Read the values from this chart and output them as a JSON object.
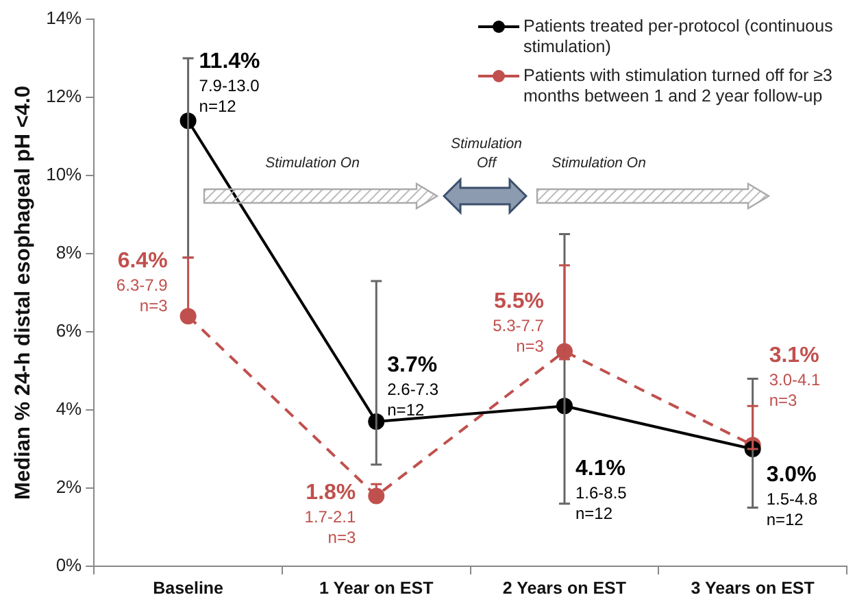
{
  "chart_data": {
    "type": "line",
    "ylabel": "Median % 24-h distal esophageal pH <4.0",
    "categories": [
      "Baseline",
      "1 Year on EST",
      "2 Years on EST",
      "3 Years on EST"
    ],
    "ylim": [
      0,
      14
    ],
    "yticks": [
      {
        "value": 0,
        "label": "0%"
      },
      {
        "value": 2,
        "label": "2%"
      },
      {
        "value": 4,
        "label": "4%"
      },
      {
        "value": 6,
        "label": "6%"
      },
      {
        "value": 8,
        "label": "8%"
      },
      {
        "value": 10,
        "label": "10%"
      },
      {
        "value": 12,
        "label": "12%"
      },
      {
        "value": 14,
        "label": "14%"
      }
    ],
    "grid": false,
    "legend": "top right",
    "marker": "circle",
    "series": [
      {
        "name": "Patients treated per-protocol (continuous stimulation)",
        "color": "#000000",
        "line_style": "solid",
        "values": [
          11.4,
          3.7,
          4.1,
          3.0
        ],
        "errors": [
          [
            7.9,
            13.0
          ],
          [
            2.6,
            7.3
          ],
          [
            1.6,
            8.5
          ],
          [
            1.5,
            4.8
          ]
        ],
        "value_labels": [
          "11.4%",
          "3.7%",
          "4.1%",
          "3.0%"
        ]
      },
      {
        "name": "Patients with stimulation turned off for ≥3 months between 1 and 2 year follow-up",
        "color": "#c0504d",
        "line_style": "dashed",
        "values": [
          6.4,
          1.8,
          5.5,
          3.1
        ],
        "errors": [
          [
            6.3,
            7.9
          ],
          [
            1.7,
            2.1
          ],
          [
            5.3,
            7.7
          ],
          [
            3.0,
            4.1
          ]
        ],
        "value_labels": [
          "6.4%",
          "1.8%",
          "5.5%",
          "3.1%"
        ]
      }
    ],
    "annotations": [
      "Stimulation On",
      "Stimulation Off",
      "Stimulation On",
      "7.9-13.0",
      "n=12",
      "2.6-7.3",
      "n=12",
      "1.6-8.5",
      "n=12",
      "1.5-4.8",
      "n=12",
      "6.3-7.9",
      "n=3",
      "1.7-2.1",
      "n=3",
      "5.3-7.7",
      "n=3",
      "3.0-4.1",
      "n=3"
    ]
  }
}
